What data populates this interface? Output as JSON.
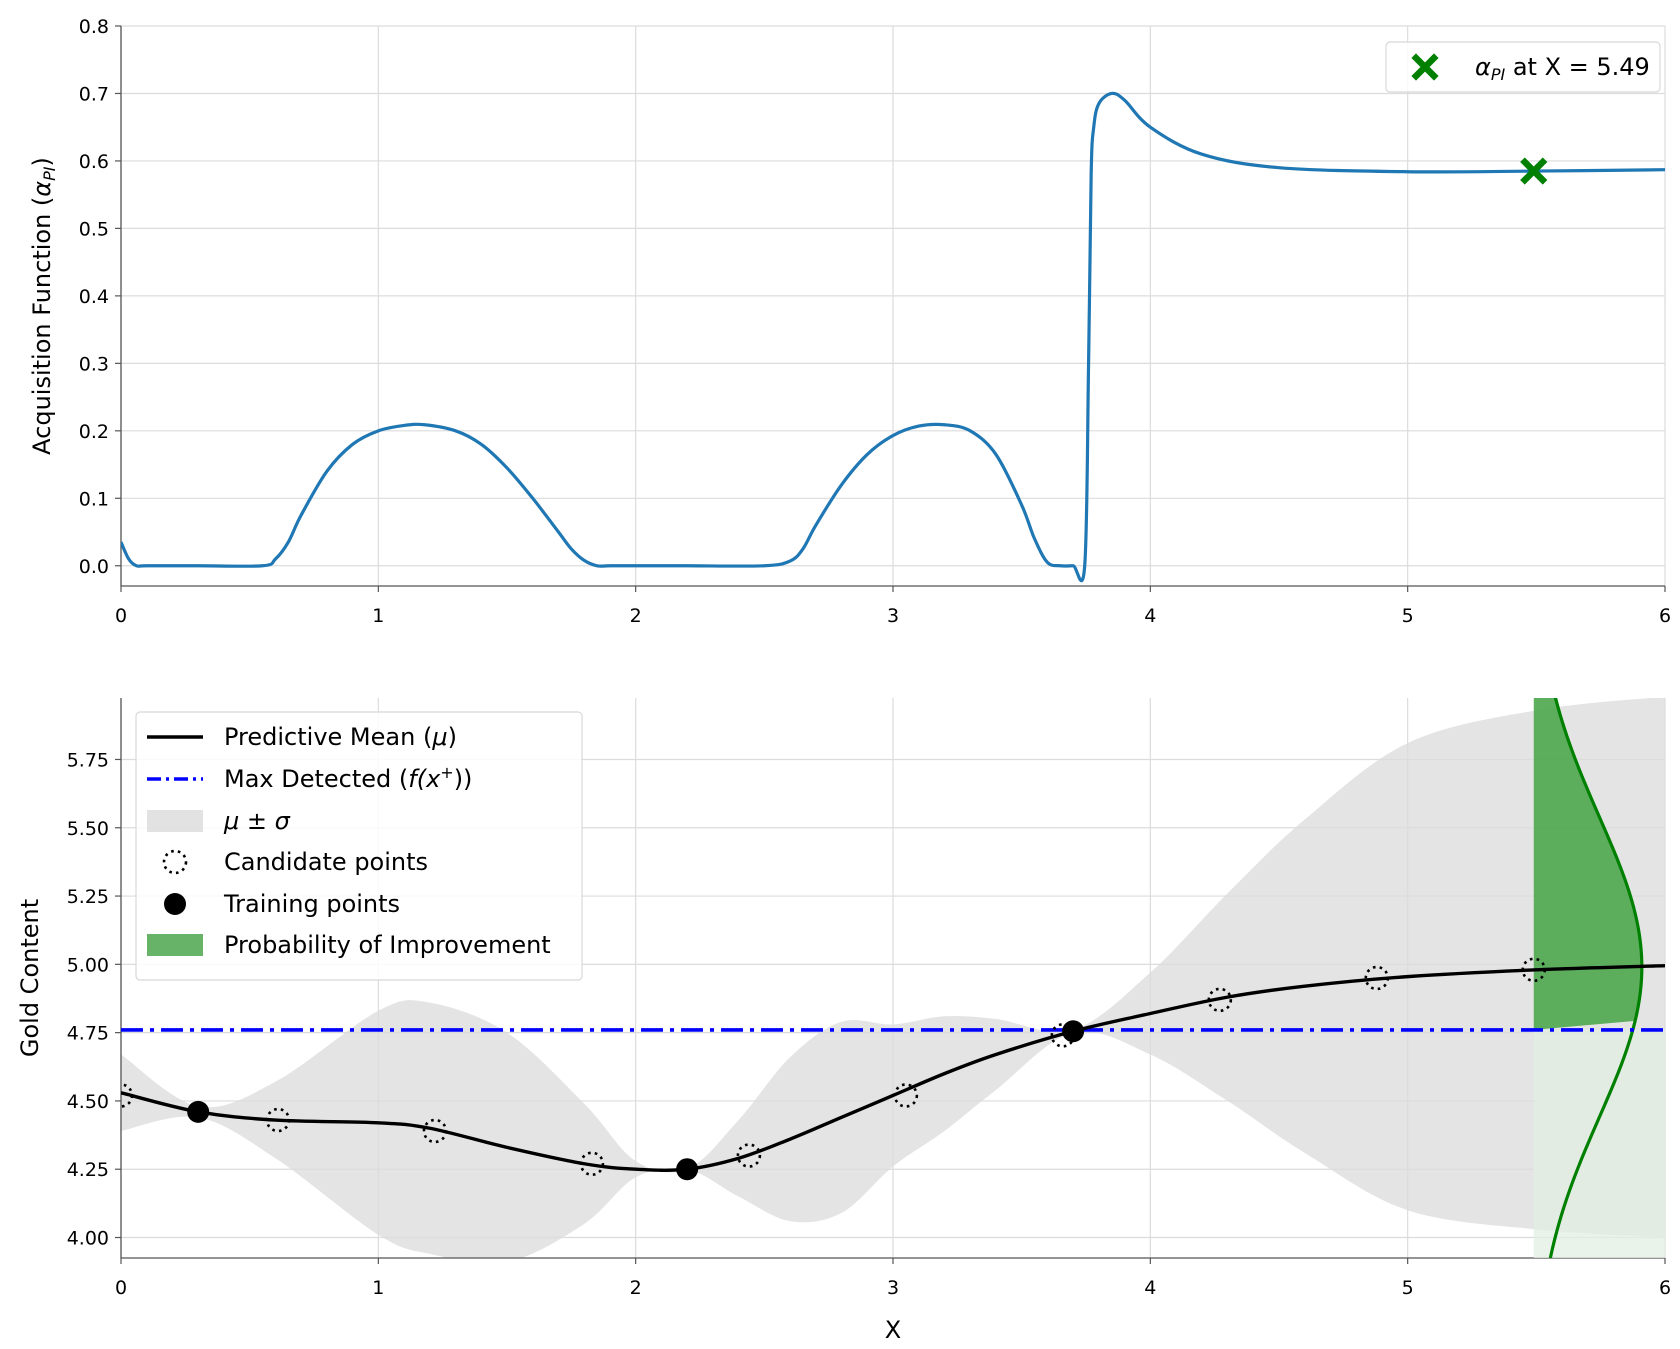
{
  "chart_data": [
    {
      "type": "line",
      "ylabel": "Acquisition Function (",
      "ylabel_symbol": "α",
      "ylabel_sub": "PI",
      "ylabel_close": ")",
      "xlim": [
        0,
        6
      ],
      "ylim": [
        -0.03,
        0.8
      ],
      "xticks": [
        "0",
        "1",
        "2",
        "3",
        "4",
        "5",
        "6"
      ],
      "yticks": [
        "0.0",
        "0.1",
        "0.2",
        "0.3",
        "0.4",
        "0.5",
        "0.6",
        "0.7",
        "0.8"
      ],
      "grid": true,
      "legend_position": "top-right",
      "colors": {
        "curve": "#1f77b4",
        "marker": "#008000"
      },
      "series": [
        {
          "x": [
            0,
            0.03,
            0.06,
            0.1,
            0.3,
            0.55,
            0.6,
            0.65,
            0.7,
            0.8,
            0.9,
            1.0,
            1.1,
            1.18,
            1.3,
            1.4,
            1.5,
            1.6,
            1.7,
            1.75,
            1.8,
            1.85,
            1.9,
            2.0,
            2.2,
            2.5,
            2.6,
            2.65,
            2.7,
            2.8,
            2.9,
            3.0,
            3.1,
            3.2,
            3.3,
            3.4,
            3.5,
            3.55,
            3.6,
            3.65,
            3.7,
            3.745,
            3.76,
            3.77,
            3.78,
            3.8,
            3.85,
            3.9,
            4.0,
            4.2,
            4.5,
            5.0,
            5.5,
            6.0
          ],
          "values": [
            0.035,
            0.01,
            0.0,
            0.0,
            0.0,
            0.0,
            0.01,
            0.035,
            0.075,
            0.14,
            0.18,
            0.2,
            0.208,
            0.209,
            0.2,
            0.18,
            0.145,
            0.1,
            0.05,
            0.025,
            0.008,
            0.0,
            0.0,
            0.0,
            0.0,
            0.0,
            0.007,
            0.025,
            0.06,
            0.12,
            0.165,
            0.193,
            0.207,
            0.209,
            0.2,
            0.165,
            0.09,
            0.04,
            0.005,
            0.0,
            0.0,
            0.0,
            0.3,
            0.58,
            0.65,
            0.685,
            0.7,
            0.69,
            0.65,
            0.61,
            0.59,
            0.584,
            0.585,
            0.587
          ]
        }
      ],
      "marker": {
        "x": 5.49,
        "y": 0.585
      },
      "legend": {
        "symbol": "α",
        "sub": "PI",
        "rest": " at X = 5.49"
      }
    },
    {
      "type": "line",
      "xlabel": "X",
      "ylabel": "Gold Content",
      "xlim": [
        0,
        6
      ],
      "ylim": [
        3.925,
        5.975
      ],
      "xticks": [
        "0",
        "1",
        "2",
        "3",
        "4",
        "5",
        "6"
      ],
      "yticks": [
        "4.00",
        "4.25",
        "4.50",
        "4.75",
        "5.00",
        "5.25",
        "5.50",
        "5.75"
      ],
      "grid": true,
      "legend_position": "top-left",
      "max_detected": 4.76,
      "pi_region_x": [
        5.49,
        6.0
      ],
      "colors": {
        "mean": "#000000",
        "max": "#0000ff",
        "band": "#d3d3d3",
        "pi_fill": "#4ca64c",
        "pi_curve": "#008000"
      },
      "mean": {
        "x": [
          0,
          0.3,
          0.6,
          1.0,
          1.2,
          1.5,
          1.8,
          2.0,
          2.2,
          2.4,
          2.6,
          2.8,
          3.0,
          3.2,
          3.4,
          3.7,
          4.0,
          4.3,
          4.6,
          5.0,
          5.5,
          6.0
        ],
        "values": [
          4.53,
          4.46,
          4.43,
          4.42,
          4.4,
          4.33,
          4.27,
          4.25,
          4.25,
          4.29,
          4.36,
          4.44,
          4.52,
          4.6,
          4.67,
          4.755,
          4.82,
          4.88,
          4.92,
          4.955,
          4.98,
          4.995
        ]
      },
      "upper": [
        4.67,
        4.48,
        4.57,
        4.83,
        4.86,
        4.75,
        4.49,
        4.28,
        4.25,
        4.43,
        4.66,
        4.79,
        4.78,
        4.81,
        4.8,
        4.76,
        4.97,
        5.26,
        5.53,
        5.81,
        5.93,
        5.98
      ],
      "lower": [
        4.39,
        4.44,
        4.29,
        4.01,
        3.94,
        3.91,
        4.05,
        4.22,
        4.25,
        4.15,
        4.06,
        4.09,
        4.26,
        4.39,
        4.54,
        4.75,
        4.67,
        4.5,
        4.31,
        4.1,
        4.03,
        4.0
      ],
      "candidate_points": {
        "x": [
          0.0,
          0.61,
          1.22,
          1.83,
          2.44,
          3.05,
          3.66,
          4.27,
          4.88,
          5.49
        ],
        "y": [
          4.52,
          4.43,
          4.39,
          4.27,
          4.3,
          4.52,
          4.74,
          4.87,
          4.95,
          4.98
        ]
      },
      "training_points": {
        "x": [
          0.3,
          2.2,
          3.7
        ],
        "y": [
          4.46,
          4.25,
          4.755
        ]
      },
      "legend": [
        {
          "label": "Predictive Mean (",
          "sym": "μ",
          "tail": ")"
        },
        {
          "label": "Max Detected (",
          "sym": "f(x",
          "sup": "+",
          "tail": "))"
        },
        {
          "label": "",
          "sym": "μ ± σ",
          "tail": ""
        },
        {
          "label": "Candidate points",
          "sym": "",
          "tail": ""
        },
        {
          "label": "Training points",
          "sym": "",
          "tail": ""
        },
        {
          "label": "Probability of Improvement",
          "sym": "",
          "tail": ""
        }
      ]
    }
  ]
}
